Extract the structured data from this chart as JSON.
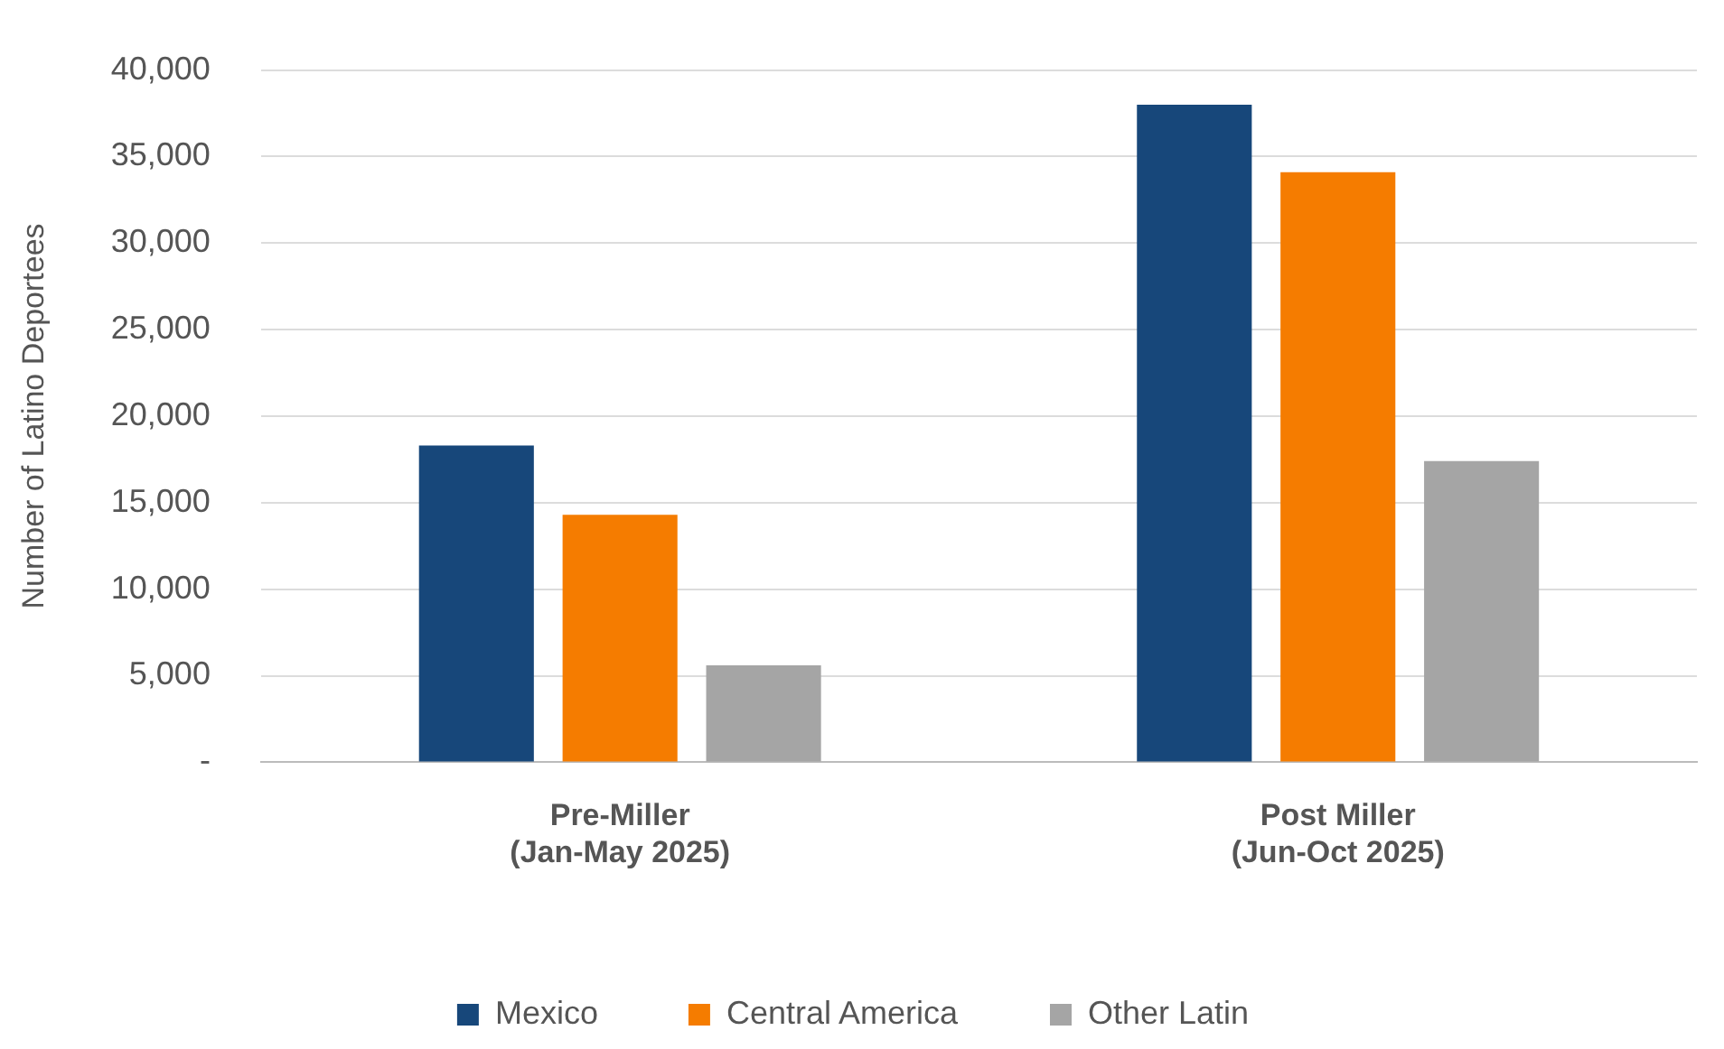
{
  "chart_data": {
    "type": "bar",
    "ylabel": "Number of Latino Deportees",
    "categories": [
      "Pre-Miller\n(Jan-May 2025)",
      "Post Miller\n(Jun-Oct 2025)"
    ],
    "series": [
      {
        "name": "Mexico",
        "color": "#17477a",
        "values": [
          18300,
          38000
        ]
      },
      {
        "name": "Central America",
        "color": "#f57c00",
        "values": [
          14300,
          34100
        ]
      },
      {
        "name": "Other Latin",
        "color": "#a5a5a5",
        "values": [
          5600,
          17400
        ]
      }
    ],
    "ylim": [
      0,
      40000
    ],
    "yticks": [
      {
        "value": 0,
        "label": "-"
      },
      {
        "value": 5000,
        "label": "5,000"
      },
      {
        "value": 10000,
        "label": "10,000"
      },
      {
        "value": 15000,
        "label": "15,000"
      },
      {
        "value": 20000,
        "label": "20,000"
      },
      {
        "value": 25000,
        "label": "25,000"
      },
      {
        "value": 30000,
        "label": "30,000"
      },
      {
        "value": 35000,
        "label": "35,000"
      },
      {
        "value": 40000,
        "label": "40,000"
      }
    ],
    "grid": "y",
    "legend": "bottom"
  }
}
